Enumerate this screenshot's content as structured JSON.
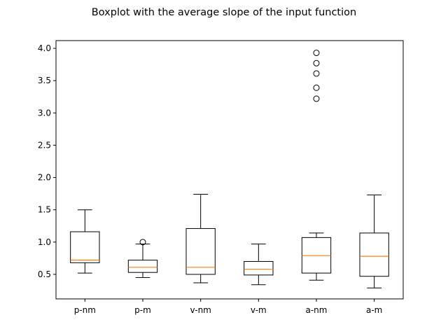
{
  "chart_data": {
    "type": "boxplot",
    "title": "Boxplot with the average slope of the input function",
    "xlabel": "",
    "ylabel": "",
    "ylim": [
      0.12,
      4.12
    ],
    "yticks": [
      "0.5",
      "1.0",
      "1.5",
      "2.0",
      "2.5",
      "3.0",
      "3.5",
      "4.0"
    ],
    "grid": false,
    "colors": {
      "box": "#000000",
      "median": "#ff7f0e",
      "flier": "#000000"
    },
    "categories": [
      "p-nm",
      "p-m",
      "v-nm",
      "v-m",
      "a-nm",
      "a-m"
    ],
    "boxes": [
      {
        "label": "p-nm",
        "whisker_low": 0.52,
        "q1": 0.68,
        "median": 0.72,
        "q3": 1.16,
        "whisker_high": 1.5,
        "fliers": []
      },
      {
        "label": "p-m",
        "whisker_low": 0.45,
        "q1": 0.53,
        "median": 0.61,
        "q3": 0.72,
        "whisker_high": 0.97,
        "fliers": [
          1.0
        ]
      },
      {
        "label": "v-nm",
        "whisker_low": 0.37,
        "q1": 0.5,
        "median": 0.61,
        "q3": 1.21,
        "whisker_high": 1.74,
        "fliers": []
      },
      {
        "label": "v-m",
        "whisker_low": 0.34,
        "q1": 0.49,
        "median": 0.58,
        "q3": 0.7,
        "whisker_high": 0.97,
        "fliers": []
      },
      {
        "label": "a-nm",
        "whisker_low": 0.41,
        "q1": 0.52,
        "median": 0.79,
        "q3": 1.07,
        "whisker_high": 1.14,
        "fliers": [
          3.22,
          3.39,
          3.61,
          3.77,
          3.93
        ]
      },
      {
        "label": "a-m",
        "whisker_low": 0.29,
        "q1": 0.47,
        "median": 0.78,
        "q3": 1.14,
        "whisker_high": 1.73,
        "fliers": []
      }
    ]
  }
}
